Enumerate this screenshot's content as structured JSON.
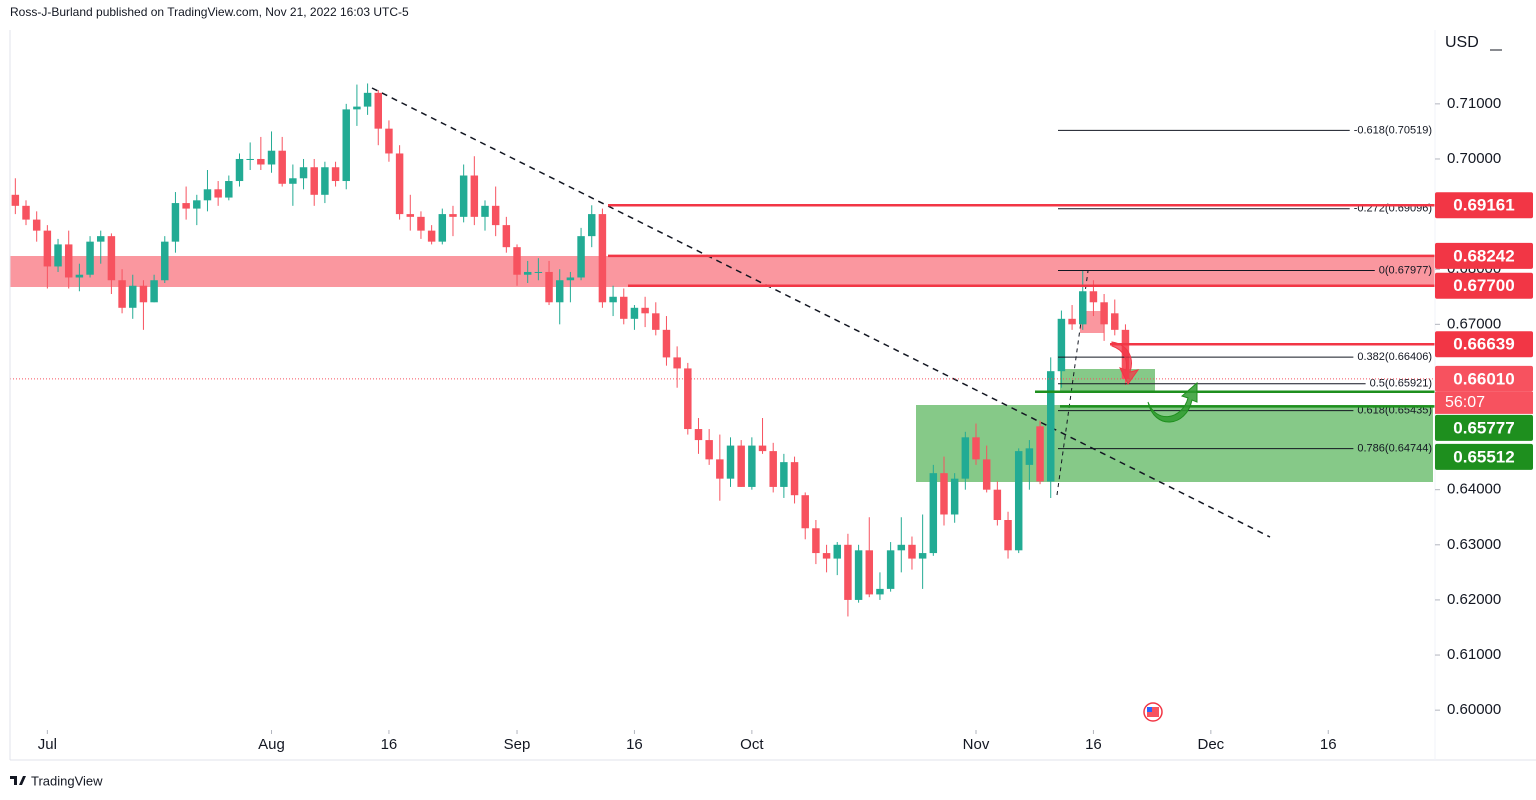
{
  "header": "Ross-J-Burland published on TradingView.com, Nov 21, 2022 16:03 UTC-5",
  "footer": "TradingView",
  "chart_data": {
    "type": "candlestick",
    "currency": "USD",
    "countdown": "56:07",
    "up_color": "#22ab94",
    "down_color": "#f7525f",
    "xlim": [
      -0.5,
      133
    ],
    "ylim": [
      0.5964,
      0.7234
    ],
    "xticks": [
      {
        "value": 3,
        "label": "Jul"
      },
      {
        "value": 24,
        "label": "Aug"
      },
      {
        "value": 35,
        "label": "16"
      },
      {
        "value": 47,
        "label": "Sep"
      },
      {
        "value": 58,
        "label": "16"
      },
      {
        "value": 69,
        "label": "Oct"
      },
      {
        "value": 90,
        "label": "Nov"
      },
      {
        "value": 101,
        "label": "16"
      },
      {
        "value": 112,
        "label": "Dec"
      },
      {
        "value": 123,
        "label": "16"
      }
    ],
    "yticks": [
      {
        "value": 0.6,
        "label": "0.60000"
      },
      {
        "value": 0.61,
        "label": "0.61000"
      },
      {
        "value": 0.62,
        "label": "0.62000"
      },
      {
        "value": 0.63,
        "label": "0.63000"
      },
      {
        "value": 0.64,
        "label": "0.64000"
      },
      {
        "value": 0.65,
        "label": "0.65000"
      },
      {
        "value": 0.66,
        "label": "0.66000"
      },
      {
        "value": 0.67,
        "label": "0.67000"
      },
      {
        "value": 0.68,
        "label": "0.68000"
      },
      {
        "value": 0.69,
        "label": "0.69000"
      },
      {
        "value": 0.7,
        "label": "0.70000"
      },
      {
        "value": 0.71,
        "label": "0.71000"
      }
    ],
    "open": [
      0.6935,
      0.6915,
      0.689,
      0.687,
      0.6805,
      0.6845,
      0.6785,
      0.679,
      0.685,
      0.686,
      0.678,
      0.673,
      0.677,
      0.674,
      0.678,
      0.685,
      0.692,
      0.691,
      0.6925,
      0.6945,
      0.693,
      0.696,
      0.7,
      0.7,
      0.699,
      0.7015,
      0.6955,
      0.6965,
      0.6985,
      0.6935,
      0.6985,
      0.696,
      0.709,
      0.7095,
      0.712,
      0.7055,
      0.701,
      0.69,
      0.6895,
      0.687,
      0.685,
      0.69,
      0.6895,
      0.697,
      0.6895,
      0.6915,
      0.688,
      0.684,
      0.679,
      0.6795,
      0.6795,
      0.674,
      0.678,
      0.6785,
      0.686,
      0.69,
      0.674,
      0.675,
      0.671,
      0.673,
      0.672,
      0.669,
      0.664,
      0.662,
      0.651,
      0.649,
      0.6455,
      0.642,
      0.648,
      0.6405,
      0.648,
      0.647,
      0.6405,
      0.645,
      0.639,
      0.633,
      0.6285,
      0.6275,
      0.63,
      0.62,
      0.629,
      0.621,
      0.622,
      0.629,
      0.63,
      0.6275,
      0.6285,
      0.643,
      0.6355,
      0.642,
      0.6495,
      0.6455,
      0.64,
      0.6345,
      0.629,
      0.6445,
      0.6515,
      0.6415,
      0.6615,
      0.671,
      0.67,
      0.676,
      0.674,
      0.672,
      0.669
    ],
    "high": [
      0.6965,
      0.6925,
      0.6905,
      0.688,
      0.6855,
      0.687,
      0.681,
      0.686,
      0.687,
      0.6865,
      0.68,
      0.679,
      0.678,
      0.679,
      0.686,
      0.694,
      0.695,
      0.6935,
      0.698,
      0.696,
      0.697,
      0.701,
      0.703,
      0.704,
      0.705,
      0.704,
      0.699,
      0.7,
      0.7,
      0.6995,
      0.6995,
      0.71,
      0.7135,
      0.7137,
      0.7125,
      0.707,
      0.7025,
      0.6935,
      0.6905,
      0.688,
      0.691,
      0.6915,
      0.699,
      0.7005,
      0.6925,
      0.695,
      0.6895,
      0.6845,
      0.6815,
      0.682,
      0.6815,
      0.68,
      0.6795,
      0.6875,
      0.6916,
      0.691,
      0.677,
      0.6765,
      0.6735,
      0.675,
      0.674,
      0.6715,
      0.666,
      0.663,
      0.653,
      0.651,
      0.65,
      0.6495,
      0.649,
      0.6495,
      0.653,
      0.6485,
      0.6465,
      0.646,
      0.6395,
      0.6345,
      0.63,
      0.6305,
      0.632,
      0.63,
      0.635,
      0.625,
      0.6305,
      0.635,
      0.6315,
      0.6355,
      0.6445,
      0.646,
      0.643,
      0.6505,
      0.652,
      0.648,
      0.6415,
      0.636,
      0.6475,
      0.649,
      0.6525,
      0.664,
      0.6725,
      0.6735,
      0.6797,
      0.678,
      0.6755,
      0.6745,
      0.67
    ],
    "low": [
      0.69,
      0.688,
      0.685,
      0.6765,
      0.6795,
      0.6765,
      0.676,
      0.6785,
      0.681,
      0.6755,
      0.672,
      0.671,
      0.669,
      0.674,
      0.6775,
      0.683,
      0.689,
      0.688,
      0.6905,
      0.6915,
      0.6925,
      0.695,
      0.698,
      0.698,
      0.6975,
      0.695,
      0.6915,
      0.6945,
      0.6915,
      0.692,
      0.695,
      0.6945,
      0.706,
      0.708,
      0.7025,
      0.6995,
      0.689,
      0.687,
      0.6855,
      0.6845,
      0.6845,
      0.686,
      0.6885,
      0.688,
      0.687,
      0.686,
      0.683,
      0.677,
      0.6775,
      0.678,
      0.6735,
      0.67,
      0.674,
      0.678,
      0.684,
      0.673,
      0.6715,
      0.67,
      0.669,
      0.6695,
      0.668,
      0.6625,
      0.6585,
      0.65,
      0.6465,
      0.6445,
      0.638,
      0.6405,
      0.6405,
      0.64,
      0.6465,
      0.6395,
      0.6385,
      0.6375,
      0.631,
      0.6265,
      0.625,
      0.6245,
      0.617,
      0.6195,
      0.6205,
      0.62,
      0.6215,
      0.625,
      0.6255,
      0.622,
      0.628,
      0.6335,
      0.634,
      0.64,
      0.6445,
      0.6395,
      0.6335,
      0.6275,
      0.6285,
      0.64,
      0.641,
      0.6385,
      0.6585,
      0.669,
      0.669,
      0.6715,
      0.667,
      0.668,
      0.659
    ],
    "close": [
      0.6915,
      0.689,
      0.687,
      0.6805,
      0.6845,
      0.6785,
      0.679,
      0.685,
      0.686,
      0.678,
      0.673,
      0.677,
      0.674,
      0.678,
      0.685,
      0.692,
      0.691,
      0.6925,
      0.6945,
      0.693,
      0.696,
      0.7,
      0.7,
      0.699,
      0.7015,
      0.6955,
      0.6965,
      0.6985,
      0.6935,
      0.6985,
      0.696,
      0.709,
      0.7095,
      0.712,
      0.7055,
      0.701,
      0.69,
      0.6895,
      0.687,
      0.685,
      0.69,
      0.6895,
      0.697,
      0.6895,
      0.6915,
      0.688,
      0.684,
      0.679,
      0.6795,
      0.6795,
      0.674,
      0.678,
      0.6785,
      0.686,
      0.69,
      0.674,
      0.675,
      0.671,
      0.673,
      0.672,
      0.669,
      0.664,
      0.662,
      0.651,
      0.649,
      0.6455,
      0.642,
      0.648,
      0.6405,
      0.648,
      0.647,
      0.6405,
      0.645,
      0.639,
      0.633,
      0.6285,
      0.6275,
      0.63,
      0.62,
      0.629,
      0.621,
      0.622,
      0.629,
      0.63,
      0.6275,
      0.6285,
      0.643,
      0.6355,
      0.642,
      0.6495,
      0.6455,
      0.64,
      0.6345,
      0.629,
      0.647,
      0.6475,
      0.6415,
      0.6615,
      0.671,
      0.67,
      0.676,
      0.674,
      0.67,
      0.669,
      0.6601
    ],
    "levels": [
      {
        "value": 0.69161,
        "color": "#f23645"
      },
      {
        "value": 0.68242,
        "color": "#f23645"
      },
      {
        "value": 0.677,
        "label": "0.67700",
        "color": "#f23645"
      },
      {
        "value": 0.66639,
        "color": "#f23645"
      },
      {
        "value": 0.6601,
        "label": "0.66010",
        "color": "#f7525f"
      },
      {
        "value": 0.65777,
        "color": "#1e8f1e"
      },
      {
        "value": 0.65512,
        "color": "#1e8f1e"
      }
    ],
    "fib": [
      {
        "label": "-0.618(0.70519)",
        "price": 0.70519
      },
      {
        "label": "-0.272(0.69096)",
        "price": 0.69096
      },
      {
        "label": "0(0.67977)",
        "price": 0.67977
      },
      {
        "label": "0.382(0.66406)",
        "price": 0.66406
      },
      {
        "label": "0.5(0.65921)",
        "price": 0.65921
      },
      {
        "label": "0.618(0.65435)",
        "price": 0.65435
      },
      {
        "label": "0.786(0.64744)",
        "price": 0.64744
      }
    ]
  }
}
